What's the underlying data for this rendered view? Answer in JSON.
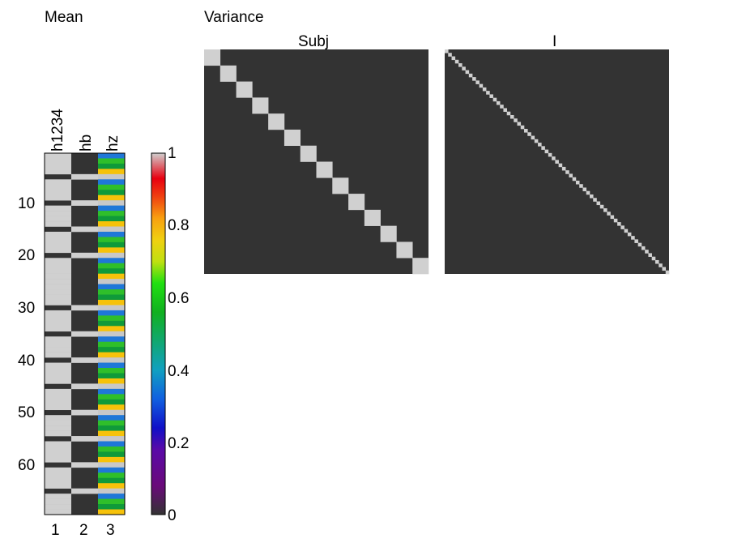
{
  "titles": {
    "mean": "Mean",
    "variance": "Variance"
  },
  "mean_columns": [
    "h1234",
    "hb",
    "hz"
  ],
  "mean_x_ticks": [
    "1",
    "2",
    "3"
  ],
  "mean_y_ticks": [
    "10",
    "20",
    "30",
    "40",
    "50",
    "60"
  ],
  "colorbar_ticks": [
    "0",
    "0.2",
    "0.4",
    "0.6",
    "0.8",
    "1"
  ],
  "variance_panels": [
    {
      "title": "Subj",
      "blocks": 14
    },
    {
      "title": "I",
      "blocks": 65
    }
  ],
  "colors": {
    "background": "#ffffff",
    "matrix_off": "#333333",
    "matrix_on": "#d0d0d0",
    "hz_stripes": [
      "#1f77d8",
      "#2fbf2a",
      "#0f9a3a",
      "#f6c20a",
      "#c8c8c8"
    ]
  },
  "mean_design": {
    "rows": 69,
    "col1_on_rows": [
      1,
      2,
      3,
      4,
      6,
      7,
      8,
      9,
      11,
      12,
      13,
      14,
      16,
      17,
      18,
      19,
      21,
      22,
      23,
      24,
      25,
      26,
      27,
      28,
      29,
      31,
      32,
      33,
      34,
      36,
      37,
      38,
      39,
      41,
      42,
      43,
      44,
      46,
      47,
      48,
      49,
      51,
      52,
      53,
      54,
      56,
      57,
      58,
      59,
      61,
      62,
      63,
      64,
      66,
      67,
      68,
      69
    ],
    "col2_on_rows": [
      5,
      10,
      15,
      20,
      30,
      35,
      40,
      45,
      50,
      55,
      60,
      65
    ]
  }
}
